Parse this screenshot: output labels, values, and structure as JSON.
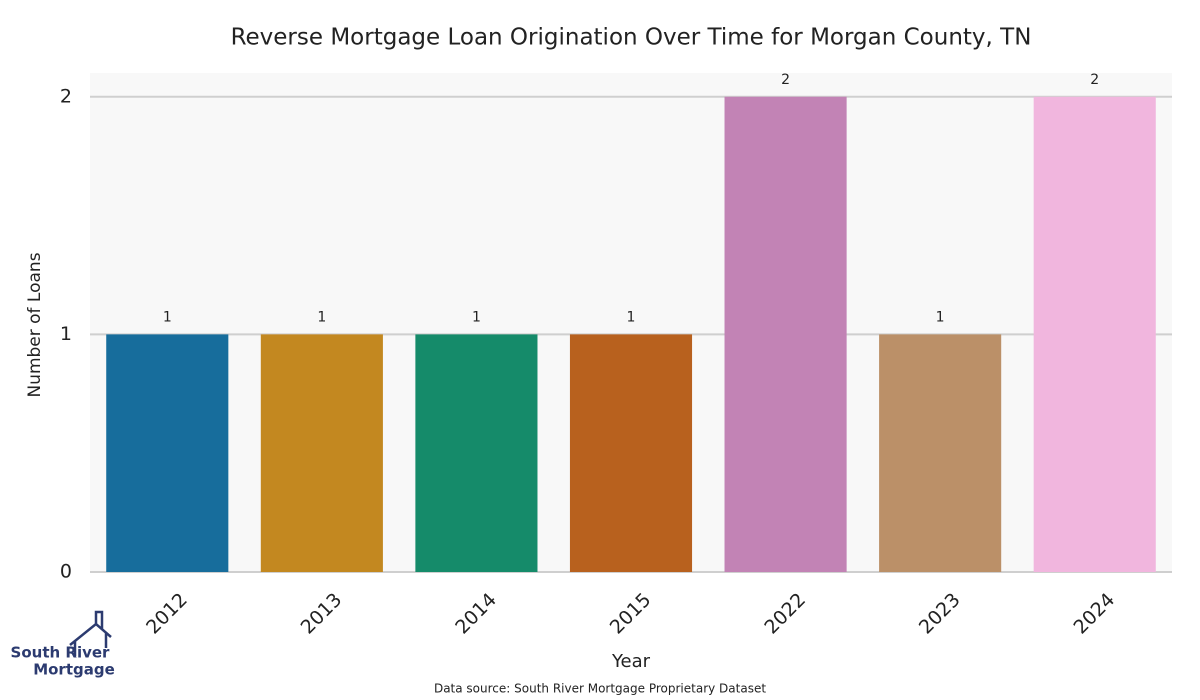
{
  "chart_data": {
    "type": "bar",
    "title": "Reverse Mortgage Loan Origination Over Time for Morgan County, TN",
    "x_label": "Year",
    "y_label": "Number of Loans",
    "categories": [
      "2012",
      "2013",
      "2014",
      "2015",
      "2022",
      "2023",
      "2024"
    ],
    "values": [
      1,
      1,
      1,
      1,
      2,
      1,
      2
    ],
    "colors": [
      "#176d9c",
      "#c38820",
      "#158b6a",
      "#b8611e",
      "#c283b5",
      "#bb9068",
      "#f1b6de"
    ],
    "ylim": [
      0,
      2.1
    ],
    "yticks": [
      0,
      1,
      2
    ],
    "grid": true,
    "source": "Data source: South River Mortgage Proprietary Dataset",
    "logo": [
      "South River",
      "Mortgage"
    ]
  }
}
